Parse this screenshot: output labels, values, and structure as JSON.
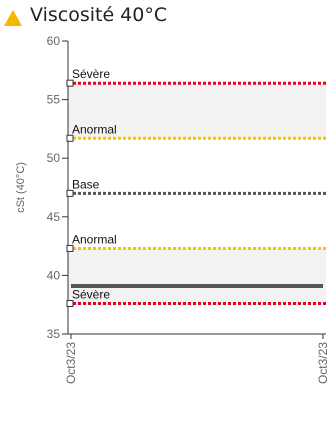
{
  "header": {
    "title": "Viscosité 40°C",
    "icon": "warning-triangle-icon",
    "icon_color": "#f5b800"
  },
  "chart_data": {
    "type": "line",
    "ylabel": "cSt (40°C)",
    "ylim": [
      35,
      60
    ],
    "yticks": [
      "35",
      "40",
      "45",
      "50",
      "55",
      "60"
    ],
    "xticks": [
      "Oct3/23",
      "Oct3/23"
    ],
    "grid": false,
    "shaded_bands": [
      {
        "from": 51.7,
        "to": 56.3,
        "color": "#f2f2f2"
      },
      {
        "from": 37.5,
        "to": 42.3,
        "color": "#f2f2f2"
      }
    ],
    "limits": [
      {
        "label": "Sévère",
        "value": 56.4,
        "color": "#e8001c"
      },
      {
        "label": "Anormal",
        "value": 51.7,
        "color": "#f5c400"
      },
      {
        "label": "Base",
        "value": 47.0,
        "color": "#555555"
      },
      {
        "label": "Anormal",
        "value": 42.3,
        "color": "#f5c400"
      },
      {
        "label": "Sévère",
        "value": 37.6,
        "color": "#e8001c"
      }
    ],
    "series": [
      {
        "values": [
          39.1,
          39.1
        ],
        "color": "#555555"
      }
    ]
  }
}
